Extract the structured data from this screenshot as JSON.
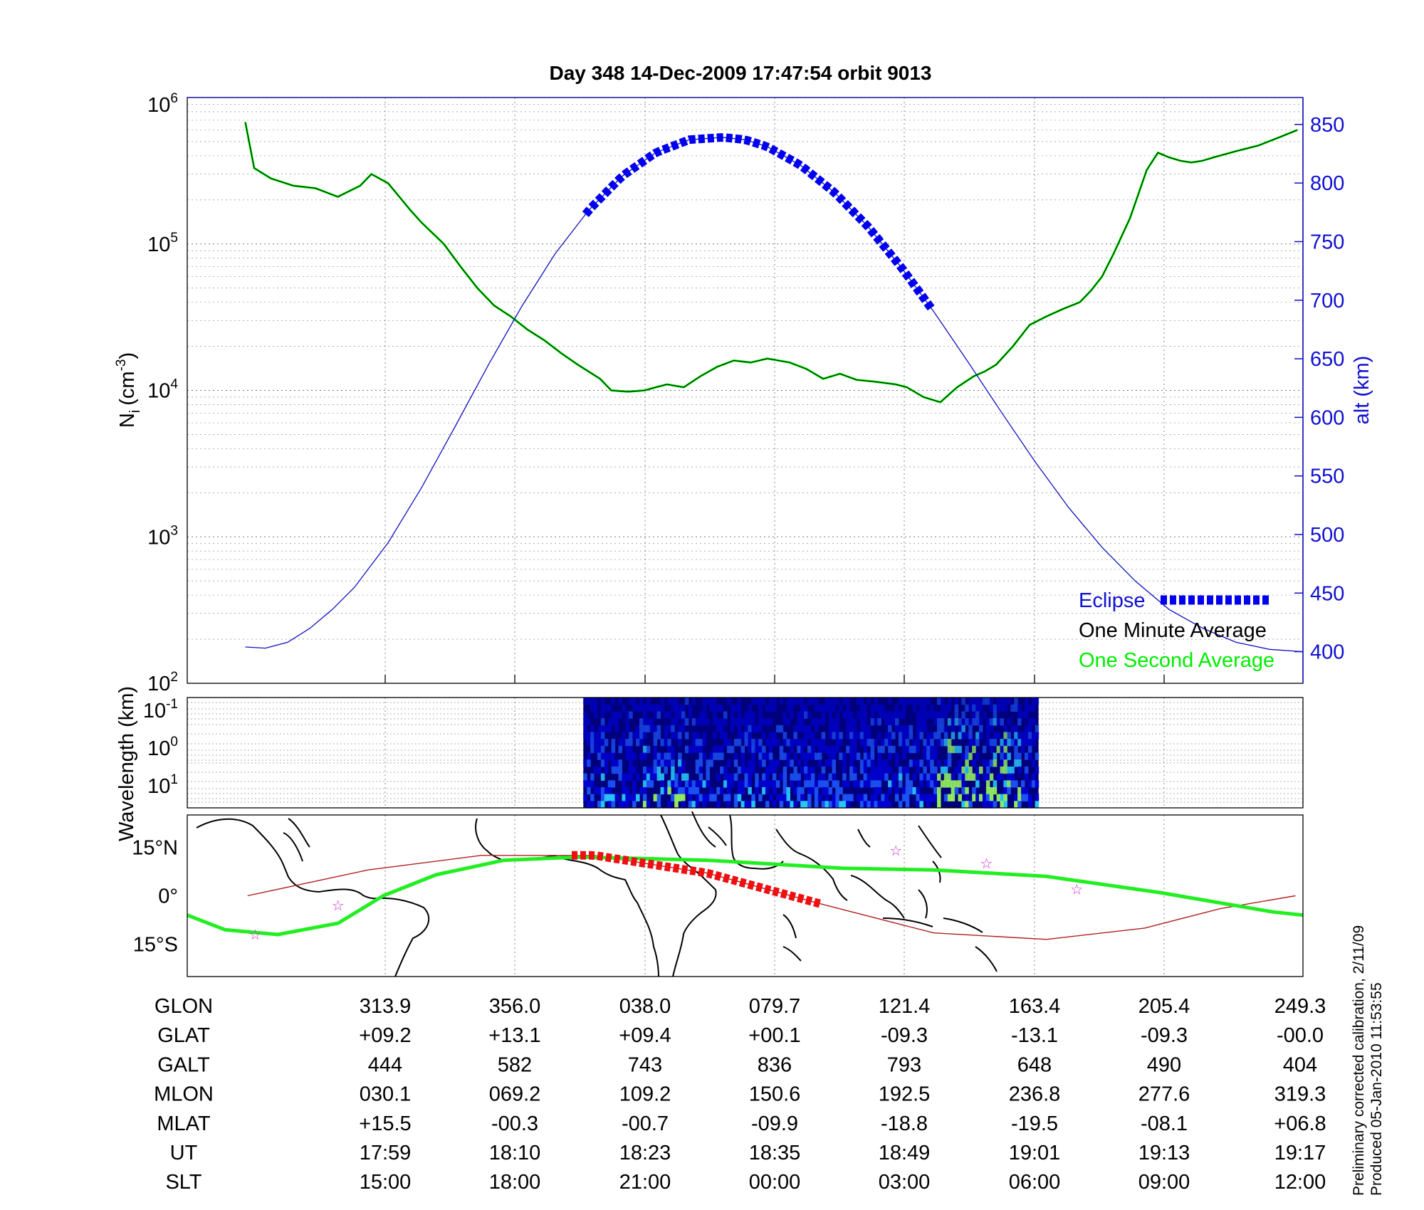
{
  "chart_data": [
    {
      "type": "line",
      "title": "Day 348  14-Dec-2009 17:47:54   orbit 9013",
      "ylabel": "N",
      "ylabel_sub": "i",
      "ylabel_unit": "(cm",
      "ylabel_exp": "-3",
      "ylabel_close": ")",
      "y_log": true,
      "ylim": [
        100,
        1000000
      ],
      "y_ticks": [
        {
          "base": "10",
          "exp": "2"
        },
        {
          "base": "10",
          "exp": "3"
        },
        {
          "base": "10",
          "exp": "4"
        },
        {
          "base": "10",
          "exp": "5"
        },
        {
          "base": "10",
          "exp": "6"
        }
      ],
      "y2label": "alt (km)",
      "y2lim": [
        373,
        873
      ],
      "y2_ticks": [
        "400",
        "450",
        "500",
        "550",
        "600",
        "650",
        "700",
        "750",
        "800",
        "850"
      ],
      "x_progress": [
        0,
        1
      ],
      "grid": true,
      "legend_position": "bottom-right",
      "series": [
        {
          "name": "One Second Average",
          "color": "#00ee00",
          "x": [
            0.052,
            0.06,
            0.075,
            0.095,
            0.115,
            0.135,
            0.155,
            0.165,
            0.18,
            0.2,
            0.21,
            0.23,
            0.245,
            0.26,
            0.275,
            0.29,
            0.305,
            0.32,
            0.335,
            0.35,
            0.37,
            0.38,
            0.395,
            0.41,
            0.42,
            0.43,
            0.445,
            0.46,
            0.475,
            0.49,
            0.505,
            0.52,
            0.54,
            0.555,
            0.57,
            0.585,
            0.6,
            0.615,
            0.635,
            0.645,
            0.66,
            0.675,
            0.69,
            0.705,
            0.715,
            0.725,
            0.74,
            0.755,
            0.77,
            0.785,
            0.8,
            0.81,
            0.82,
            0.83,
            0.845,
            0.86,
            0.87,
            0.88,
            0.89,
            0.9,
            0.91,
            0.92,
            0.94,
            0.96,
            0.98,
            0.995
          ],
          "y": [
            680000,
            330000,
            280000,
            250000,
            240000,
            210000,
            250000,
            300000,
            260000,
            170000,
            140000,
            100000,
            70000,
            50000,
            38000,
            32000,
            26000,
            22000,
            18000,
            15000,
            12000,
            10000,
            9800,
            10000,
            10500,
            11000,
            10500,
            12500,
            14500,
            16000,
            15500,
            16500,
            15500,
            14000,
            12000,
            13000,
            11800,
            11500,
            11000,
            10500,
            9000,
            8300,
            10500,
            12500,
            13500,
            15000,
            20000,
            28000,
            32000,
            36000,
            40000,
            48000,
            60000,
            85000,
            150000,
            320000,
            420000,
            390000,
            370000,
            360000,
            370000,
            390000,
            430000,
            470000,
            540000,
            600000
          ]
        },
        {
          "name": "One Minute Average",
          "color": "#000000"
        },
        {
          "name": "alt",
          "color": "#1010c0",
          "axis": "right",
          "x": [
            0.052,
            0.07,
            0.09,
            0.11,
            0.13,
            0.15,
            0.18,
            0.21,
            0.24,
            0.27,
            0.3,
            0.33,
            0.36,
            0.39,
            0.42,
            0.45,
            0.48,
            0.5,
            0.52,
            0.55,
            0.58,
            0.61,
            0.64,
            0.67,
            0.7,
            0.73,
            0.76,
            0.79,
            0.82,
            0.85,
            0.88,
            0.91,
            0.94,
            0.97,
            1.0
          ],
          "y": [
            404,
            403,
            408,
            420,
            436,
            455,
            493,
            540,
            592,
            645,
            695,
            740,
            777,
            806,
            826,
            837,
            839,
            837,
            831,
            815,
            792,
            763,
            728,
            689,
            647,
            604,
            562,
            523,
            489,
            460,
            436,
            420,
            408,
            402,
            400
          ]
        },
        {
          "name": "Eclipse",
          "color": "#0000ee",
          "axis": "right",
          "x_range": [
            0.357,
            0.667
          ]
        }
      ]
    },
    {
      "type": "heatmap",
      "ylabel": "Wavelength (km)",
      "y_log": true,
      "y_ticks": [
        {
          "base": "10",
          "exp": "-1"
        },
        {
          "base": "10",
          "exp": "0"
        },
        {
          "base": "10",
          "exp": "1"
        }
      ],
      "x_progress_range": [
        0.355,
        0.763
      ],
      "colormap": [
        "#00007a",
        "#0000d8",
        "#1e5aff",
        "#2bd4ff",
        "#9dff5c"
      ]
    },
    {
      "type": "scatter",
      "ylabel_ticks": [
        "15°N",
        "0°",
        "15°S"
      ],
      "ylim": [
        -25,
        25
      ],
      "xlim": [
        291,
        439
      ],
      "series": [
        {
          "name": "ground track",
          "color": "#22ee22",
          "lon": [
            291,
            296,
            303,
            311,
            317,
            324,
            333,
            343,
            360,
            378,
            390,
            405,
            420,
            435,
            439
          ],
          "lat": [
            -6,
            -10.5,
            -12,
            -8.5,
            0,
            6.5,
            11,
            12,
            11,
            8.5,
            8,
            6,
            1,
            -5,
            -6
          ]
        },
        {
          "name": "magnetic equator",
          "color": "#b02020",
          "lon": [
            299,
            315,
            330,
            345,
            360,
            375,
            390,
            405,
            418,
            428,
            438
          ],
          "lat": [
            0,
            8,
            12.5,
            12.5,
            7,
            -2.5,
            -11.5,
            -13.5,
            -10,
            -4,
            0
          ]
        },
        {
          "name": "eclipse track",
          "color": "#ee1010",
          "lon_range": [
            342,
            375
          ]
        },
        {
          "name": "stars",
          "color": "#cc33cc",
          "lon": [
            300,
            311,
            385,
            397,
            409
          ],
          "lat": [
            -12,
            -3,
            14,
            10,
            2
          ]
        }
      ]
    }
  ],
  "table": {
    "rows": [
      {
        "label": "GLON",
        "values": [
          "313.9",
          "356.0",
          "038.0",
          "079.7",
          "121.4",
          "163.4",
          "205.4",
          "249.3"
        ]
      },
      {
        "label": "GLAT",
        "values": [
          "+09.2",
          "+13.1",
          "+09.4",
          "+00.1",
          "-09.3",
          "-13.1",
          "-09.3",
          "-00.0"
        ]
      },
      {
        "label": "GALT",
        "values": [
          "444",
          "582",
          "743",
          "836",
          "793",
          "648",
          "490",
          "404"
        ]
      },
      {
        "label": "MLON",
        "values": [
          "030.1",
          "069.2",
          "109.2",
          "150.6",
          "192.5",
          "236.8",
          "277.6",
          "319.3"
        ]
      },
      {
        "label": "MLAT",
        "values": [
          "+15.5",
          "-00.3",
          "-00.7",
          "-09.9",
          "-18.8",
          "-19.5",
          "-08.1",
          "+06.8"
        ]
      },
      {
        "label": "UT",
        "values": [
          "17:59",
          "18:10",
          "18:23",
          "18:35",
          "18:49",
          "19:01",
          "19:13",
          "19:17"
        ]
      },
      {
        "label": "SLT",
        "values": [
          "15:00",
          "18:00",
          "21:00",
          "00:00",
          "03:00",
          "06:00",
          "09:00",
          "12:00"
        ]
      }
    ]
  },
  "side_note": {
    "line1": "Preliminary corrected calibration, 2/11/09",
    "line2": "Produced 05-Jan-2010 11:53:55"
  }
}
